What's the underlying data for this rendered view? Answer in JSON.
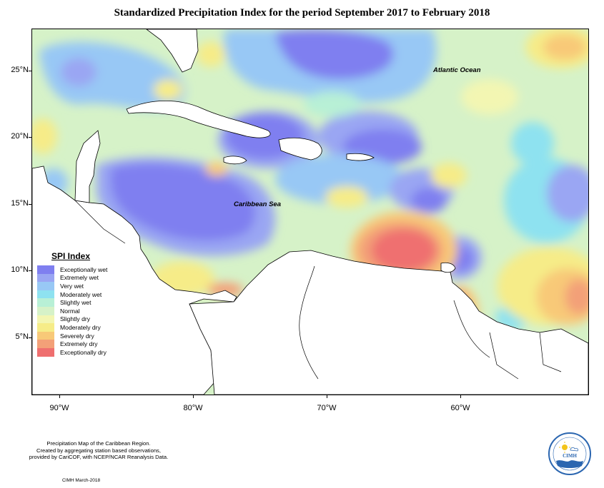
{
  "title": "Standardized Precipitation Index for the period September 2017 to February 2018",
  "map": {
    "latitude_labels": [
      {
        "label": "25°N",
        "lat": 25
      },
      {
        "label": "20°N",
        "lat": 20
      },
      {
        "label": "15°N",
        "lat": 15
      },
      {
        "label": "10°N",
        "lat": 10
      },
      {
        "label": "5°N",
        "lat": 5
      }
    ],
    "longitude_labels": [
      {
        "label": "90°W",
        "lon": -90
      },
      {
        "label": "80°W",
        "lon": -80
      },
      {
        "label": "70°W",
        "lon": -70
      },
      {
        "label": "60°W",
        "lon": -60
      }
    ],
    "place_labels": {
      "atlantic": "Atlantic Ocean",
      "caribbean": "Caribbean Sea"
    }
  },
  "legend": {
    "title": "SPI Index",
    "items": [
      {
        "label": "Exceptionally wet",
        "color": "#7f7ff0"
      },
      {
        "label": "Extremely wet",
        "color": "#9aa6f3"
      },
      {
        "label": "Very wet",
        "color": "#98c8f5"
      },
      {
        "label": "Moderately wet",
        "color": "#8ee2f0"
      },
      {
        "label": "Slightly wet",
        "color": "#b8f0d6"
      },
      {
        "label": "Normal",
        "color": "#d6f2c8"
      },
      {
        "label": "Slightly dry",
        "color": "#f3f6b2"
      },
      {
        "label": "Moderately dry",
        "color": "#f6ec88"
      },
      {
        "label": "Severely dry",
        "color": "#f8c978"
      },
      {
        "label": "Extremely dry",
        "color": "#f3a078"
      },
      {
        "label": "Exceptionally dry",
        "color": "#ef6f6f"
      }
    ]
  },
  "footer": {
    "line1": "Precipitation Map of the Caribbean Region.",
    "line2": "Created by aggregating station based observations,",
    "line3": "provided by CariCOF, with NCEP/NCAR Reanalysis Data.",
    "credit": "CIMH March-2018"
  },
  "logo": {
    "text": "CIMH"
  }
}
